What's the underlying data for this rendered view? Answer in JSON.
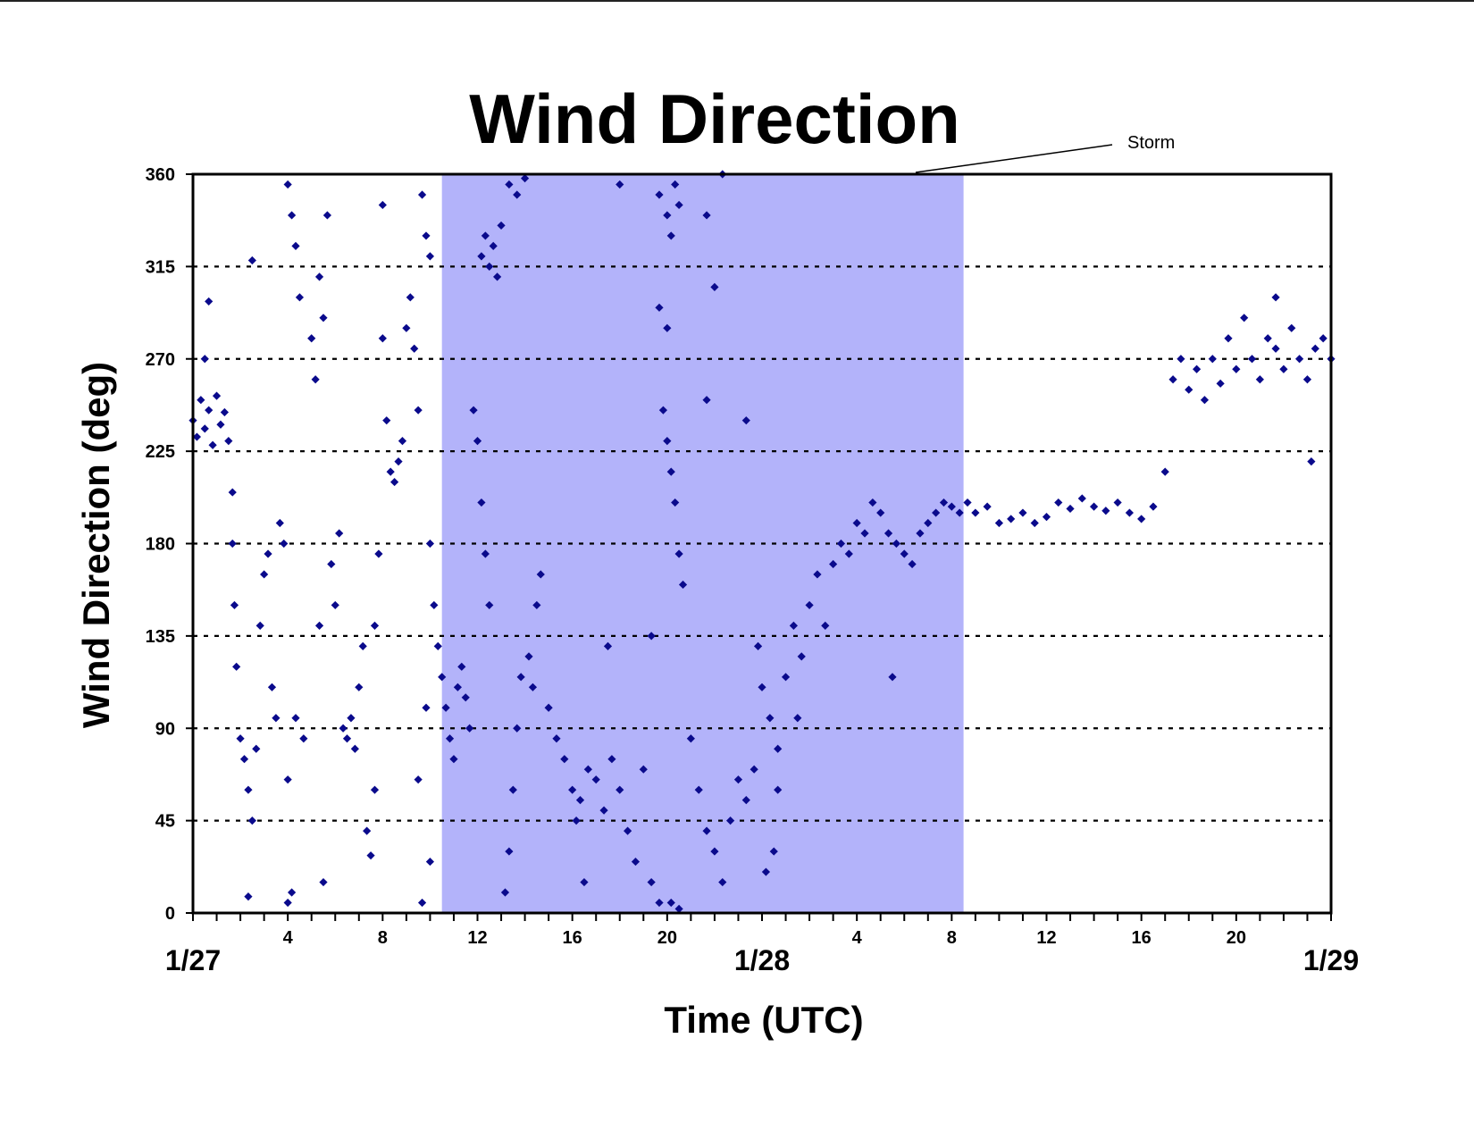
{
  "chart_data": {
    "type": "scatter",
    "title": "Wind Direction",
    "xlabel": "Time (UTC)",
    "ylabel": "Wind Direction (deg)",
    "ylim": [
      0,
      360
    ],
    "xlim": [
      "1/27 00:00",
      "1/29 00:00"
    ],
    "y_ticks": [
      "0",
      "45",
      "90",
      "135",
      "180",
      "225",
      "270",
      "315",
      "360"
    ],
    "x_hour_ticks": [
      {
        "time": "1/27 04:00",
        "label": "4"
      },
      {
        "time": "1/27 08:00",
        "label": "8"
      },
      {
        "time": "1/27 12:00",
        "label": "12"
      },
      {
        "time": "1/27 16:00",
        "label": "16"
      },
      {
        "time": "1/27 20:00",
        "label": "20"
      },
      {
        "time": "1/28 04:00",
        "label": "4"
      },
      {
        "time": "1/28 08:00",
        "label": "8"
      },
      {
        "time": "1/28 12:00",
        "label": "12"
      },
      {
        "time": "1/28 16:00",
        "label": "16"
      },
      {
        "time": "1/28 20:00",
        "label": "20"
      }
    ],
    "x_day_labels": [
      {
        "time": "1/27 00:00",
        "label": "1/27"
      },
      {
        "time": "1/28 00:00",
        "label": "1/28"
      },
      {
        "time": "1/29 00:00",
        "label": "1/29"
      }
    ],
    "grid": "dashed horizontal lines at y ticks",
    "marker_color": "#0a0a8c",
    "shade_color": "#b3b3fa",
    "shaded_region": {
      "label": "Storm",
      "start": "1/27 10:30",
      "end": "1/28 08:30"
    },
    "annotation": {
      "text": "Storm"
    },
    "series": [
      {
        "points": [
          [
            "1/27 00:00",
            240
          ],
          [
            "1/27 00:10",
            232
          ],
          [
            "1/27 00:20",
            250
          ],
          [
            "1/27 00:30",
            236
          ],
          [
            "1/27 00:40",
            245
          ],
          [
            "1/27 00:50",
            228
          ],
          [
            "1/27 01:00",
            252
          ],
          [
            "1/27 01:10",
            238
          ],
          [
            "1/27 01:20",
            244
          ],
          [
            "1/27 01:30",
            230
          ],
          [
            "1/27 00:30",
            270
          ],
          [
            "1/27 00:40",
            298
          ],
          [
            "1/27 01:40",
            205
          ],
          [
            "1/27 01:40",
            180
          ],
          [
            "1/27 01:45",
            150
          ],
          [
            "1/27 01:50",
            120
          ],
          [
            "1/27 02:00",
            85
          ],
          [
            "1/27 02:10",
            75
          ],
          [
            "1/27 02:20",
            60
          ],
          [
            "1/27 02:30",
            45
          ],
          [
            "1/27 02:40",
            80
          ],
          [
            "1/27 02:50",
            140
          ],
          [
            "1/27 03:00",
            165
          ],
          [
            "1/27 03:10",
            175
          ],
          [
            "1/27 03:20",
            110
          ],
          [
            "1/27 03:30",
            95
          ],
          [
            "1/27 03:40",
            190
          ],
          [
            "1/27 03:50",
            180
          ],
          [
            "1/27 02:30",
            318
          ],
          [
            "1/27 02:20",
            8
          ],
          [
            "1/27 04:00",
            355
          ],
          [
            "1/27 04:10",
            340
          ],
          [
            "1/27 04:20",
            325
          ],
          [
            "1/27 04:30",
            300
          ],
          [
            "1/27 04:10",
            10
          ],
          [
            "1/27 04:00",
            5
          ],
          [
            "1/27 04:00",
            65
          ],
          [
            "1/27 04:20",
            95
          ],
          [
            "1/27 04:40",
            85
          ],
          [
            "1/27 05:00",
            280
          ],
          [
            "1/27 05:10",
            260
          ],
          [
            "1/27 05:20",
            310
          ],
          [
            "1/27 05:30",
            290
          ],
          [
            "1/27 05:20",
            140
          ],
          [
            "1/27 05:40",
            340
          ],
          [
            "1/27 05:30",
            15
          ],
          [
            "1/27 05:50",
            170
          ],
          [
            "1/27 06:00",
            150
          ],
          [
            "1/27 06:10",
            185
          ],
          [
            "1/27 06:20",
            90
          ],
          [
            "1/27 06:30",
            85
          ],
          [
            "1/27 06:40",
            95
          ],
          [
            "1/27 06:50",
            80
          ],
          [
            "1/27 07:00",
            110
          ],
          [
            "1/27 07:10",
            130
          ],
          [
            "1/27 07:20",
            40
          ],
          [
            "1/27 07:30",
            28
          ],
          [
            "1/27 07:40",
            60
          ],
          [
            "1/27 07:50",
            175
          ],
          [
            "1/27 07:40",
            140
          ],
          [
            "1/27 08:00",
            345
          ],
          [
            "1/27 08:00",
            280
          ],
          [
            "1/27 08:10",
            240
          ],
          [
            "1/27 08:20",
            215
          ],
          [
            "1/27 08:30",
            210
          ],
          [
            "1/27 08:40",
            220
          ],
          [
            "1/27 08:50",
            230
          ],
          [
            "1/27 09:00",
            285
          ],
          [
            "1/27 09:10",
            300
          ],
          [
            "1/27 09:20",
            275
          ],
          [
            "1/27 09:30",
            245
          ],
          [
            "1/27 09:40",
            350
          ],
          [
            "1/27 09:50",
            330
          ],
          [
            "1/27 10:00",
            320
          ],
          [
            "1/27 09:30",
            65
          ],
          [
            "1/27 09:40",
            5
          ],
          [
            "1/27 10:00",
            180
          ],
          [
            "1/27 10:10",
            150
          ],
          [
            "1/27 10:20",
            130
          ],
          [
            "1/27 10:30",
            115
          ],
          [
            "1/27 09:50",
            100
          ],
          [
            "1/27 10:00",
            25
          ],
          [
            "1/27 10:40",
            100
          ],
          [
            "1/27 10:50",
            85
          ],
          [
            "1/27 11:00",
            75
          ],
          [
            "1/27 11:10",
            110
          ],
          [
            "1/27 11:20",
            120
          ],
          [
            "1/27 11:30",
            105
          ],
          [
            "1/27 11:40",
            90
          ],
          [
            "1/27 11:50",
            245
          ],
          [
            "1/27 12:00",
            230
          ],
          [
            "1/27 12:10",
            200
          ],
          [
            "1/27 12:20",
            175
          ],
          [
            "1/27 12:30",
            150
          ],
          [
            "1/27 12:10",
            320
          ],
          [
            "1/27 12:20",
            330
          ],
          [
            "1/27 12:30",
            315
          ],
          [
            "1/27 12:40",
            325
          ],
          [
            "1/27 12:50",
            310
          ],
          [
            "1/27 13:00",
            335
          ],
          [
            "1/27 13:20",
            355
          ],
          [
            "1/27 13:40",
            350
          ],
          [
            "1/27 14:00",
            358
          ],
          [
            "1/27 13:10",
            10
          ],
          [
            "1/27 13:20",
            30
          ],
          [
            "1/27 13:30",
            60
          ],
          [
            "1/27 13:40",
            90
          ],
          [
            "1/27 13:50",
            115
          ],
          [
            "1/27 14:10",
            125
          ],
          [
            "1/27 14:20",
            110
          ],
          [
            "1/27 14:30",
            150
          ],
          [
            "1/27 14:40",
            165
          ],
          [
            "1/27 15:00",
            100
          ],
          [
            "1/27 15:20",
            85
          ],
          [
            "1/27 15:40",
            75
          ],
          [
            "1/27 16:00",
            60
          ],
          [
            "1/27 16:10",
            45
          ],
          [
            "1/27 16:20",
            55
          ],
          [
            "1/27 16:30",
            15
          ],
          [
            "1/27 16:40",
            70
          ],
          [
            "1/27 17:00",
            65
          ],
          [
            "1/27 17:20",
            50
          ],
          [
            "1/27 17:40",
            75
          ],
          [
            "1/27 18:00",
            60
          ],
          [
            "1/27 18:20",
            40
          ],
          [
            "1/27 18:40",
            25
          ],
          [
            "1/27 19:00",
            70
          ],
          [
            "1/27 19:20",
            15
          ],
          [
            "1/27 19:40",
            5
          ],
          [
            "1/27 18:00",
            355
          ],
          [
            "1/27 17:30",
            130
          ],
          [
            "1/27 19:20",
            135
          ],
          [
            "1/27 19:40",
            350
          ],
          [
            "1/27 20:00",
            340
          ],
          [
            "1/27 20:10",
            330
          ],
          [
            "1/27 20:20",
            355
          ],
          [
            "1/27 20:30",
            345
          ],
          [
            "1/27 19:40",
            295
          ],
          [
            "1/27 20:00",
            285
          ],
          [
            "1/27 19:50",
            245
          ],
          [
            "1/27 20:00",
            230
          ],
          [
            "1/27 20:10",
            215
          ],
          [
            "1/27 20:20",
            200
          ],
          [
            "1/27 20:30",
            175
          ],
          [
            "1/27 20:40",
            160
          ],
          [
            "1/27 20:10",
            5
          ],
          [
            "1/27 20:30",
            2
          ],
          [
            "1/27 21:00",
            85
          ],
          [
            "1/27 21:20",
            60
          ],
          [
            "1/27 21:40",
            40
          ],
          [
            "1/27 22:00",
            30
          ],
          [
            "1/27 22:20",
            15
          ],
          [
            "1/27 21:40",
            340
          ],
          [
            "1/27 22:20",
            360
          ],
          [
            "1/27 22:00",
            305
          ],
          [
            "1/27 21:40",
            250
          ],
          [
            "1/27 22:40",
            45
          ],
          [
            "1/27 23:00",
            65
          ],
          [
            "1/27 23:20",
            55
          ],
          [
            "1/27 23:40",
            70
          ],
          [
            "1/27 23:20",
            240
          ],
          [
            "1/27 23:50",
            130
          ],
          [
            "1/28 00:00",
            110
          ],
          [
            "1/28 00:20",
            95
          ],
          [
            "1/28 00:40",
            60
          ],
          [
            "1/28 00:10",
            20
          ],
          [
            "1/28 00:30",
            30
          ],
          [
            "1/28 00:40",
            80
          ],
          [
            "1/28 01:00",
            115
          ],
          [
            "1/28 01:20",
            140
          ],
          [
            "1/28 01:40",
            125
          ],
          [
            "1/28 01:30",
            95
          ],
          [
            "1/28 02:00",
            150
          ],
          [
            "1/28 02:20",
            165
          ],
          [
            "1/28 02:40",
            140
          ],
          [
            "1/28 03:00",
            170
          ],
          [
            "1/28 03:20",
            180
          ],
          [
            "1/28 03:40",
            175
          ],
          [
            "1/28 04:00",
            190
          ],
          [
            "1/28 04:20",
            185
          ],
          [
            "1/28 04:40",
            200
          ],
          [
            "1/28 05:00",
            195
          ],
          [
            "1/28 05:20",
            185
          ],
          [
            "1/28 05:40",
            180
          ],
          [
            "1/28 06:00",
            175
          ],
          [
            "1/28 05:30",
            115
          ],
          [
            "1/28 06:20",
            170
          ],
          [
            "1/28 06:40",
            185
          ],
          [
            "1/28 07:00",
            190
          ],
          [
            "1/28 07:20",
            195
          ],
          [
            "1/28 07:40",
            200
          ],
          [
            "1/28 08:00",
            198
          ],
          [
            "1/28 08:20",
            195
          ],
          [
            "1/28 08:40",
            200
          ],
          [
            "1/28 09:00",
            195
          ],
          [
            "1/28 09:30",
            198
          ],
          [
            "1/28 10:00",
            190
          ],
          [
            "1/28 10:30",
            192
          ],
          [
            "1/28 11:00",
            195
          ],
          [
            "1/28 11:30",
            190
          ],
          [
            "1/28 12:00",
            193
          ],
          [
            "1/28 12:30",
            200
          ],
          [
            "1/28 13:00",
            197
          ],
          [
            "1/28 13:30",
            202
          ],
          [
            "1/28 14:00",
            198
          ],
          [
            "1/28 14:30",
            196
          ],
          [
            "1/28 15:00",
            200
          ],
          [
            "1/28 15:30",
            195
          ],
          [
            "1/28 16:00",
            192
          ],
          [
            "1/28 16:30",
            198
          ],
          [
            "1/28 17:00",
            215
          ],
          [
            "1/28 17:20",
            260
          ],
          [
            "1/28 17:40",
            270
          ],
          [
            "1/28 18:00",
            255
          ],
          [
            "1/28 18:20",
            265
          ],
          [
            "1/28 18:40",
            250
          ],
          [
            "1/28 19:00",
            270
          ],
          [
            "1/28 19:20",
            258
          ],
          [
            "1/28 19:40",
            280
          ],
          [
            "1/28 20:00",
            265
          ],
          [
            "1/28 20:20",
            290
          ],
          [
            "1/28 20:40",
            270
          ],
          [
            "1/28 21:00",
            260
          ],
          [
            "1/28 21:20",
            280
          ],
          [
            "1/28 21:40",
            275
          ],
          [
            "1/28 22:00",
            265
          ],
          [
            "1/28 22:20",
            285
          ],
          [
            "1/28 22:40",
            270
          ],
          [
            "1/28 23:00",
            260
          ],
          [
            "1/28 23:20",
            275
          ],
          [
            "1/28 23:40",
            280
          ],
          [
            "1/29 00:00",
            270
          ],
          [
            "1/28 23:10",
            220
          ],
          [
            "1/28 21:40",
            300
          ]
        ]
      }
    ]
  }
}
